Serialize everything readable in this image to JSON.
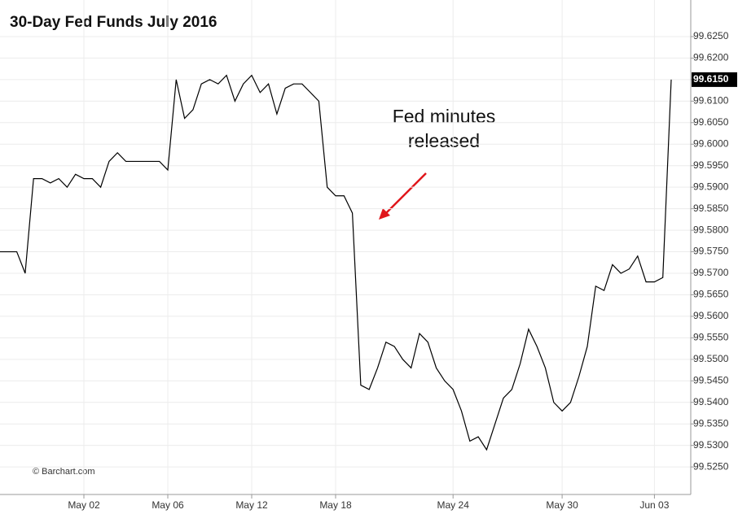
{
  "chart_data": {
    "type": "line",
    "title": "30-Day Fed Funds July 2016",
    "credit": "© Barchart.com",
    "annotation": [
      "Fed minutes",
      "released"
    ],
    "categories": [
      null,
      null,
      null,
      null,
      null,
      null,
      null,
      null,
      null,
      null,
      "May 02",
      null,
      null,
      null,
      null,
      null,
      null,
      null,
      null,
      null,
      "May 06",
      null,
      null,
      null,
      null,
      null,
      null,
      null,
      null,
      null,
      "May 12",
      null,
      null,
      null,
      null,
      null,
      null,
      null,
      null,
      null,
      "May 18",
      null,
      null,
      null,
      null,
      null,
      null,
      null,
      null,
      null,
      null,
      null,
      null,
      null,
      "May 24",
      null,
      null,
      null,
      null,
      null,
      null,
      null,
      null,
      null,
      null,
      null,
      null,
      "May 30",
      null,
      null,
      null,
      null,
      null,
      null,
      null,
      null,
      null,
      null,
      "Jun 03",
      null,
      null
    ],
    "series": [
      {
        "color": "#000000",
        "values": [
          99.575,
          99.575,
          99.575,
          99.57,
          99.592,
          99.592,
          99.591,
          99.592,
          99.59,
          99.593,
          99.592,
          99.592,
          99.59,
          99.596,
          99.598,
          99.596,
          99.596,
          99.596,
          99.596,
          99.596,
          99.594,
          99.615,
          99.606,
          99.608,
          99.614,
          99.615,
          99.614,
          99.616,
          99.61,
          99.614,
          99.616,
          99.612,
          99.614,
          99.607,
          99.613,
          99.614,
          99.614,
          99.612,
          99.61,
          99.59,
          99.588,
          99.588,
          99.584,
          99.544,
          99.543,
          99.548,
          99.554,
          99.553,
          99.55,
          99.548,
          99.556,
          99.554,
          99.548,
          99.545,
          99.543,
          99.538,
          99.531,
          99.532,
          99.529,
          99.535,
          99.541,
          99.543,
          99.549,
          99.557,
          99.553,
          99.548,
          99.54,
          99.538,
          99.54,
          99.546,
          99.553,
          99.567,
          99.566,
          99.572,
          99.57,
          99.571,
          99.574,
          99.568,
          99.568,
          99.569,
          99.615
        ]
      }
    ],
    "last_price": {
      "value": 99.615,
      "label": "99.6150"
    },
    "ylim": [
      99.5186,
      99.6335
    ],
    "yticks": [
      {
        "value": 99.525,
        "label": "99.5250"
      },
      {
        "value": 99.53,
        "label": "99.5300"
      },
      {
        "value": 99.535,
        "label": "99.5350"
      },
      {
        "value": 99.54,
        "label": "99.5400"
      },
      {
        "value": 99.545,
        "label": "99.5450"
      },
      {
        "value": 99.55,
        "label": "99.5500"
      },
      {
        "value": 99.555,
        "label": "99.5550"
      },
      {
        "value": 99.56,
        "label": "99.5600"
      },
      {
        "value": 99.565,
        "label": "99.5650"
      },
      {
        "value": 99.57,
        "label": "99.5700"
      },
      {
        "value": 99.575,
        "label": "99.5750"
      },
      {
        "value": 99.58,
        "label": "99.5800"
      },
      {
        "value": 99.585,
        "label": "99.5850"
      },
      {
        "value": 99.59,
        "label": "99.5900"
      },
      {
        "value": 99.595,
        "label": "99.5950"
      },
      {
        "value": 99.6,
        "label": "99.6000"
      },
      {
        "value": 99.605,
        "label": "99.6050"
      },
      {
        "value": 99.61,
        "label": "99.6100"
      },
      {
        "value": 99.615,
        "label": "99.6150"
      },
      {
        "value": 99.62,
        "label": "99.6200"
      },
      {
        "value": 99.625,
        "label": "99.6250"
      }
    ],
    "grid": true
  }
}
